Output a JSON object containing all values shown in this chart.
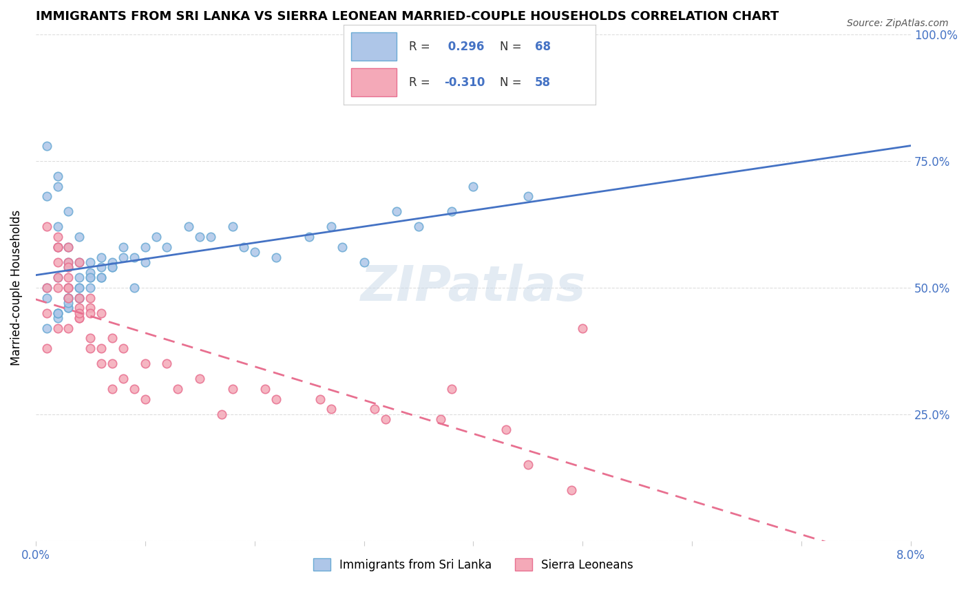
{
  "title": "IMMIGRANTS FROM SRI LANKA VS SIERRA LEONEAN MARRIED-COUPLE HOUSEHOLDS CORRELATION CHART",
  "source_text": "Source: ZipAtlas.com",
  "xlabel": "",
  "ylabel": "Married-couple Households",
  "x_min": 0.0,
  "x_max": 0.08,
  "y_min": 0.0,
  "y_max": 1.0,
  "x_ticks": [
    0.0,
    0.01,
    0.02,
    0.03,
    0.04,
    0.05,
    0.06,
    0.07,
    0.08
  ],
  "x_tick_labels": [
    "0.0%",
    "",
    "",
    "",
    "",
    "",
    "",
    "",
    "8.0%"
  ],
  "y_ticks": [
    0.0,
    0.25,
    0.5,
    0.75,
    1.0
  ],
  "y_tick_labels": [
    "",
    "25.0%",
    "50.0%",
    "75.0%",
    "100.0%"
  ],
  "series1_label": "Immigrants from Sri Lanka",
  "series2_label": "Sierra Leoneans",
  "series1_color": "#aec6e8",
  "series2_color": "#f4a9b8",
  "series1_edge_color": "#6aaad4",
  "series2_edge_color": "#e87090",
  "series1_line_color": "#4472c4",
  "series2_line_color": "#e87090",
  "trend_line1_color": "#4472c4",
  "trend_line2_color": "#e87090",
  "R1": 0.296,
  "N1": 68,
  "R2": -0.31,
  "N2": 58,
  "legend_R_color": "#333333",
  "legend_N_color": "#4472c4",
  "watermark": "ZIPatlas",
  "watermark_color": "#c8d8e8",
  "series1_x": [
    0.001,
    0.002,
    0.001,
    0.002,
    0.003,
    0.002,
    0.003,
    0.004,
    0.003,
    0.002,
    0.001,
    0.003,
    0.004,
    0.005,
    0.002,
    0.003,
    0.004,
    0.003,
    0.002,
    0.001,
    0.004,
    0.005,
    0.003,
    0.002,
    0.001,
    0.003,
    0.005,
    0.006,
    0.004,
    0.003,
    0.007,
    0.008,
    0.005,
    0.006,
    0.009,
    0.01,
    0.012,
    0.015,
    0.018,
    0.02,
    0.025,
    0.028,
    0.03,
    0.035,
    0.006,
    0.004,
    0.003,
    0.038,
    0.045,
    0.002,
    0.004,
    0.006,
    0.007,
    0.008,
    0.01,
    0.003,
    0.002,
    0.005,
    0.007,
    0.009,
    0.011,
    0.014,
    0.016,
    0.019,
    0.022,
    0.027,
    0.033,
    0.04
  ],
  "series1_y": [
    0.78,
    0.7,
    0.68,
    0.72,
    0.65,
    0.62,
    0.58,
    0.6,
    0.55,
    0.52,
    0.5,
    0.48,
    0.52,
    0.55,
    0.58,
    0.54,
    0.5,
    0.48,
    0.45,
    0.42,
    0.55,
    0.52,
    0.46,
    0.44,
    0.48,
    0.5,
    0.53,
    0.56,
    0.48,
    0.46,
    0.55,
    0.58,
    0.52,
    0.54,
    0.5,
    0.55,
    0.58,
    0.6,
    0.62,
    0.57,
    0.6,
    0.58,
    0.55,
    0.62,
    0.52,
    0.5,
    0.48,
    0.65,
    0.68,
    0.45,
    0.48,
    0.52,
    0.54,
    0.56,
    0.58,
    0.47,
    0.45,
    0.5,
    0.54,
    0.56,
    0.6,
    0.62,
    0.6,
    0.58,
    0.56,
    0.62,
    0.65,
    0.7
  ],
  "series2_x": [
    0.001,
    0.002,
    0.003,
    0.002,
    0.001,
    0.003,
    0.004,
    0.003,
    0.002,
    0.001,
    0.003,
    0.004,
    0.002,
    0.003,
    0.004,
    0.005,
    0.003,
    0.002,
    0.001,
    0.004,
    0.005,
    0.006,
    0.007,
    0.008,
    0.004,
    0.003,
    0.005,
    0.006,
    0.002,
    0.004,
    0.007,
    0.009,
    0.01,
    0.012,
    0.015,
    0.018,
    0.022,
    0.027,
    0.032,
    0.038,
    0.045,
    0.05,
    0.002,
    0.003,
    0.005,
    0.007,
    0.01,
    0.013,
    0.017,
    0.021,
    0.026,
    0.031,
    0.037,
    0.043,
    0.049,
    0.005,
    0.006,
    0.008
  ],
  "series2_y": [
    0.62,
    0.58,
    0.55,
    0.6,
    0.5,
    0.52,
    0.48,
    0.54,
    0.5,
    0.45,
    0.58,
    0.55,
    0.52,
    0.48,
    0.44,
    0.46,
    0.5,
    0.42,
    0.38,
    0.44,
    0.4,
    0.38,
    0.3,
    0.32,
    0.46,
    0.42,
    0.38,
    0.35,
    0.55,
    0.45,
    0.35,
    0.3,
    0.28,
    0.35,
    0.32,
    0.3,
    0.28,
    0.26,
    0.24,
    0.3,
    0.15,
    0.42,
    0.58,
    0.5,
    0.45,
    0.4,
    0.35,
    0.3,
    0.25,
    0.3,
    0.28,
    0.26,
    0.24,
    0.22,
    0.1,
    0.48,
    0.45,
    0.38
  ]
}
